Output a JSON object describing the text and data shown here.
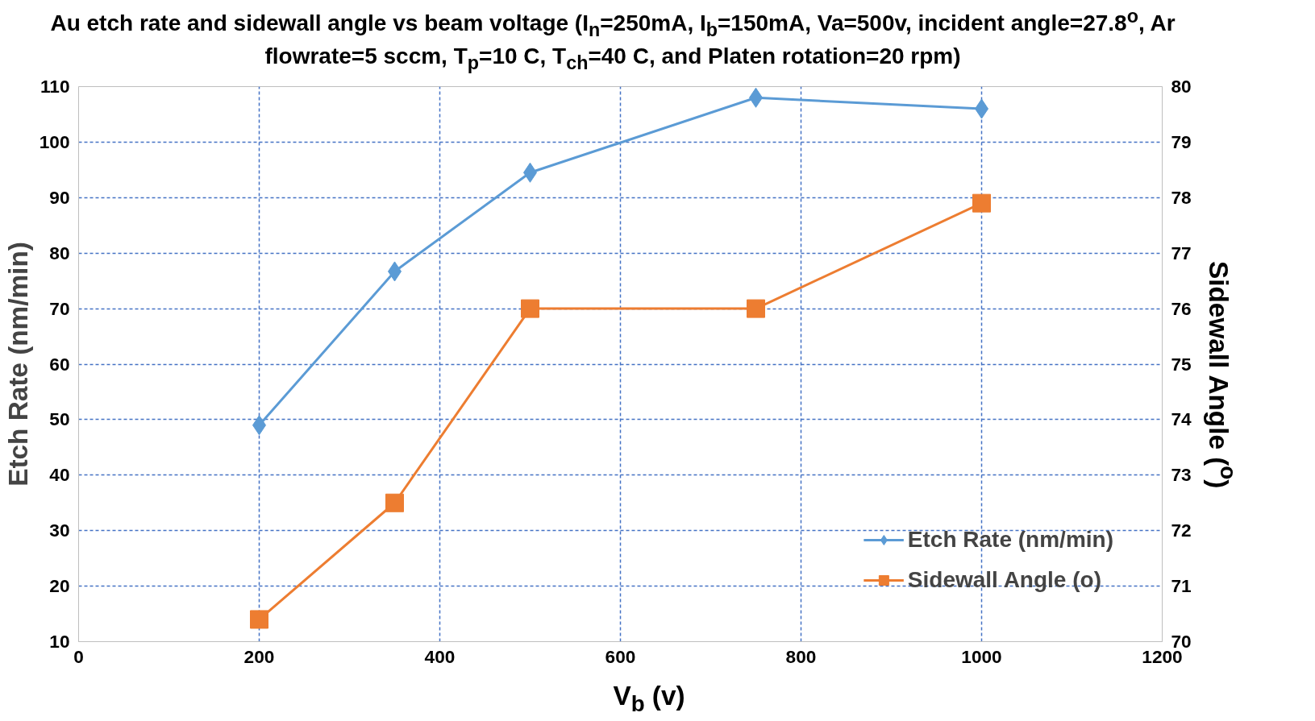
{
  "chart_data": {
    "type": "line",
    "title": "Au etch rate and sidewall angle vs beam voltage (I$_{n}$=250mA, I$_{b}$=150mA, Va=500v, incident angle=27.8$^{o}$, Ar flowrate=5 sccm, T$_{p}$=10 C, T$_{ch}$=40 C, and Platen rotation=20 rpm)",
    "xlabel": "V$_{b}$ (v)",
    "ylabel": "Etch Rate (nm/min)",
    "y2label": "Sidewall Angle ($^{o}$)",
    "x": [
      200,
      350,
      500,
      750,
      1000
    ],
    "series": [
      {
        "name": "Etch Rate (nm/min)",
        "color": "#5b9bd5",
        "marker": "diamond",
        "values": [
          49,
          76.7,
          94.5,
          108,
          106
        ]
      },
      {
        "name": "Sidewall Angle (o)",
        "color": "#ed7d31",
        "marker": "square",
        "axis": "y2",
        "values": [
          70.4,
          72.5,
          76,
          76,
          77.9
        ]
      }
    ],
    "xlim": [
      0,
      1200
    ],
    "xticks": [
      0,
      200,
      400,
      600,
      800,
      1000,
      1200
    ],
    "ylim": [
      10,
      110
    ],
    "yticks": [
      10,
      20,
      30,
      40,
      50,
      60,
      70,
      80,
      90,
      100,
      110
    ],
    "y2lim": [
      70,
      80
    ],
    "y2ticks": [
      70,
      71,
      72,
      73,
      74,
      75,
      76,
      77,
      78,
      79,
      80
    ],
    "grid": true,
    "legend": "bottom right",
    "line_style": "solid"
  }
}
